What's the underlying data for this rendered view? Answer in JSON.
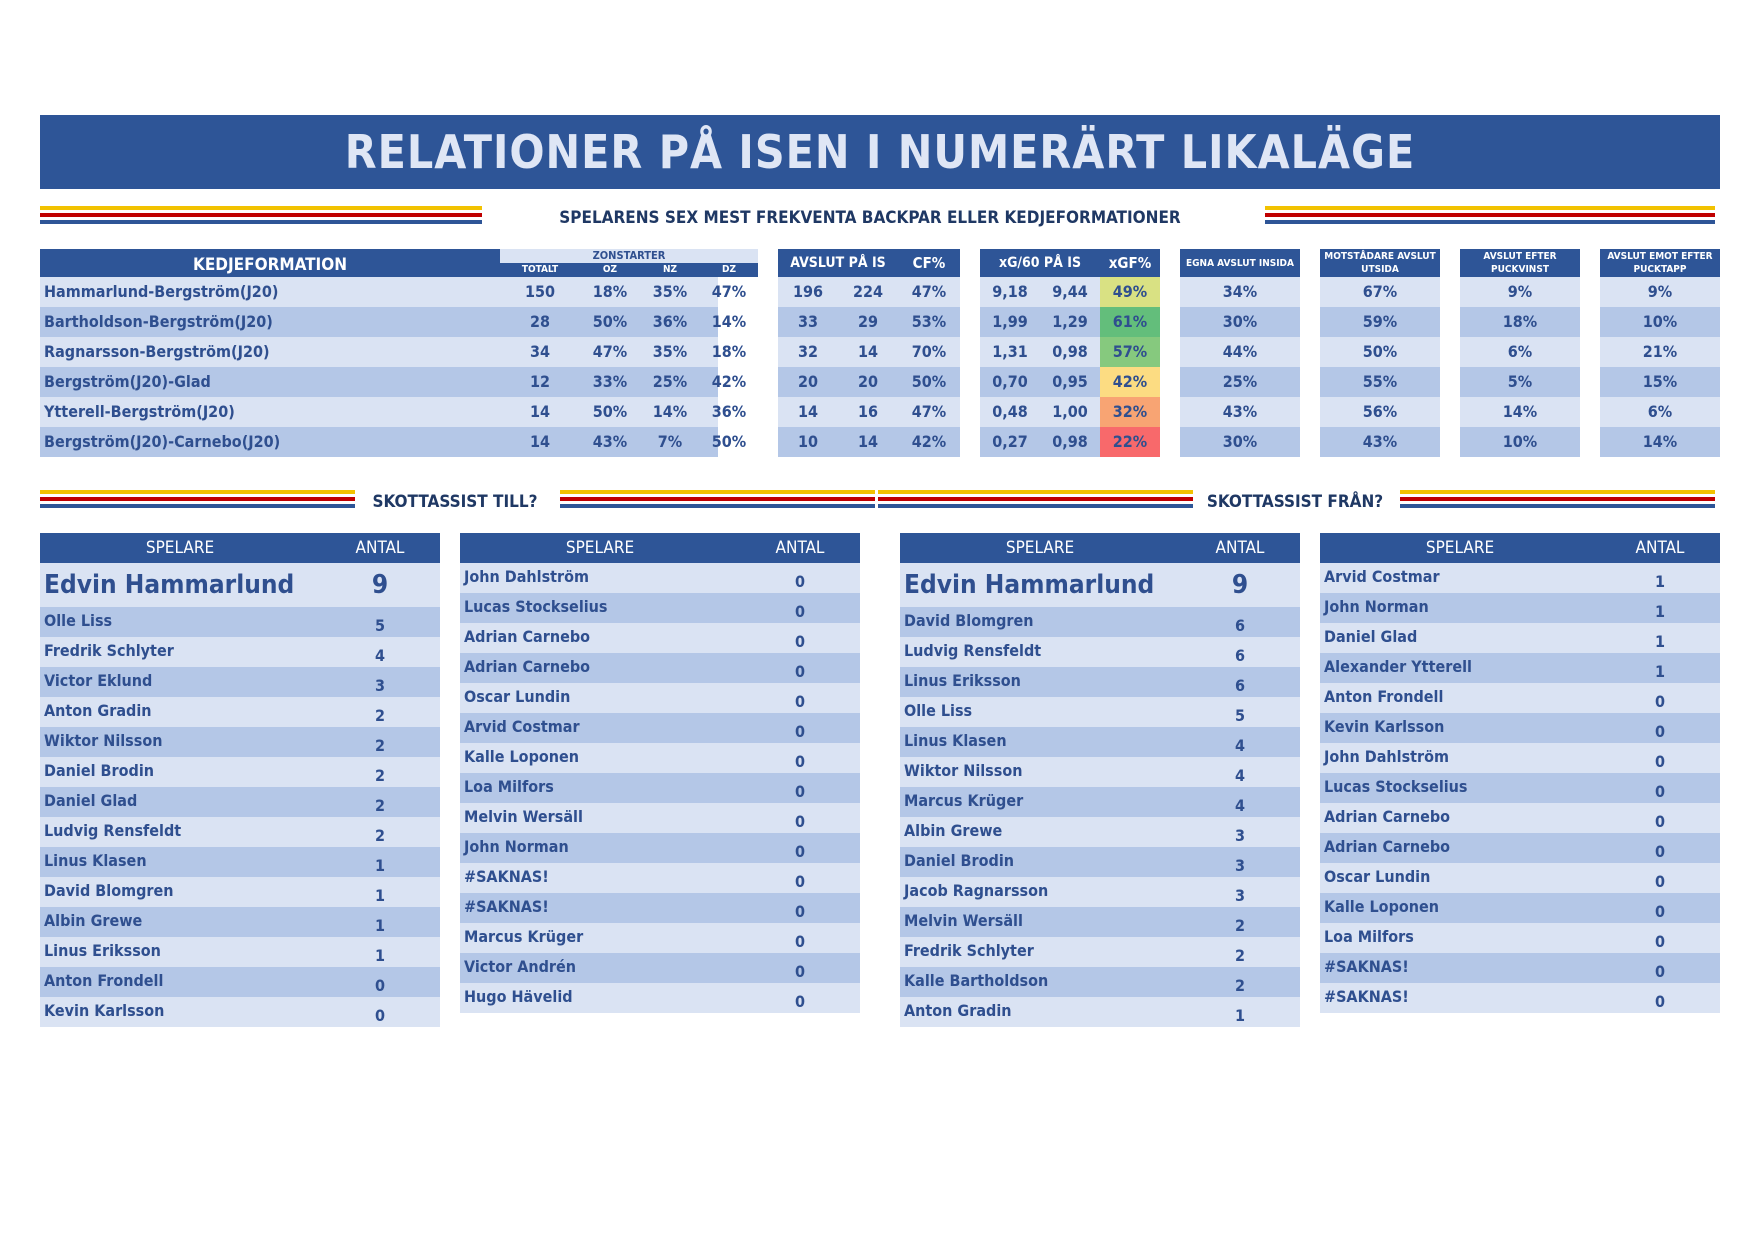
{
  "title": "RELATIONER PÅ ISEN I NUMERÄRT LIKALÄGE",
  "subtitle": "SPELARENS SEX MEST FREKVENTA BACKPAR ELLER KEDJEFORMATIONER",
  "main_table": {
    "col_formation": "KEDJEFORMATION",
    "col_zonstarter": "ZONSTARTER",
    "col_totalt": "TOTALT",
    "col_oz": "OZ",
    "col_nz": "NZ",
    "col_dz": "DZ",
    "col_avslut": "AVSLUT PÅ IS",
    "col_cf": "CF%",
    "col_xg60": "xG/60 PÅ IS",
    "col_xgf": "xGF%",
    "col_egna": "EGNA AVSLUT INSIDA",
    "col_motst": "MOTSTÅDARE AVSLUT UTSIDA",
    "col_puckvinst": "AVSLUT EFTER PUCKVINST",
    "col_pucktapp": "AVSLUT EMOT EFTER PUCKTAPP",
    "rows": [
      {
        "name": "Hammarlund-Bergström(J20)",
        "totalt": "150",
        "oz": "18%",
        "nz": "35%",
        "dz": "47%",
        "af": "196",
        "aa": "224",
        "cf": "47%",
        "xgf60": "9,18",
        "xga60": "9,44",
        "xgf": "49%",
        "xgf_color": "#d9e183",
        "egna": "34%",
        "motst": "67%",
        "puckvinst": "9%",
        "pucktapp": "9%"
      },
      {
        "name": "Bartholdson-Bergström(J20)",
        "totalt": "28",
        "oz": "50%",
        "nz": "36%",
        "dz": "14%",
        "af": "33",
        "aa": "29",
        "cf": "53%",
        "xgf60": "1,99",
        "xga60": "1,29",
        "xgf": "61%",
        "xgf_color": "#63be7b",
        "egna": "30%",
        "motst": "59%",
        "puckvinst": "18%",
        "pucktapp": "10%"
      },
      {
        "name": "Ragnarsson-Bergström(J20)",
        "totalt": "34",
        "oz": "47%",
        "nz": "35%",
        "dz": "18%",
        "af": "32",
        "aa": "14",
        "cf": "70%",
        "xgf60": "1,31",
        "xga60": "0,98",
        "xgf": "57%",
        "xgf_color": "#86c97e",
        "egna": "44%",
        "motst": "50%",
        "puckvinst": "6%",
        "pucktapp": "21%"
      },
      {
        "name": "Bergström(J20)-Glad",
        "totalt": "12",
        "oz": "33%",
        "nz": "25%",
        "dz": "42%",
        "af": "20",
        "aa": "20",
        "cf": "50%",
        "xgf60": "0,70",
        "xga60": "0,95",
        "xgf": "42%",
        "xgf_color": "#fcdc82",
        "egna": "25%",
        "motst": "55%",
        "puckvinst": "5%",
        "pucktapp": "15%"
      },
      {
        "name": "Ytterell-Bergström(J20)",
        "totalt": "14",
        "oz": "50%",
        "nz": "14%",
        "dz": "36%",
        "af": "14",
        "aa": "16",
        "cf": "47%",
        "xgf60": "0,48",
        "xga60": "1,00",
        "xgf": "32%",
        "xgf_color": "#f8a473",
        "egna": "43%",
        "motst": "56%",
        "puckvinst": "14%",
        "pucktapp": "6%"
      },
      {
        "name": "Bergström(J20)-Carnebo(J20)",
        "totalt": "14",
        "oz": "43%",
        "nz": "7%",
        "dz": "50%",
        "af": "10",
        "aa": "14",
        "cf": "42%",
        "xgf60": "0,27",
        "xga60": "0,98",
        "xgf": "22%",
        "xgf_color": "#f8696b",
        "egna": "30%",
        "motst": "43%",
        "puckvinst": "10%",
        "pucktapp": "14%"
      }
    ]
  },
  "section_till": "SKOTTASSIST TILL?",
  "section_fran": "SKOTTASSIST FRÅN?",
  "list_header_player": "SPELARE",
  "list_header_count": "ANTAL",
  "lists": [
    {
      "featured": {
        "name": "Edvin Hammarlund",
        "count": "9"
      },
      "rows": [
        [
          "Olle Liss",
          "5"
        ],
        [
          "Fredrik Schlyter",
          "4"
        ],
        [
          "Victor Eklund",
          "3"
        ],
        [
          "Anton Gradin",
          "2"
        ],
        [
          "Wiktor Nilsson",
          "2"
        ],
        [
          "Daniel Brodin",
          "2"
        ],
        [
          "Daniel Glad",
          "2"
        ],
        [
          "Ludvig Rensfeldt",
          "2"
        ],
        [
          "Linus Klasen",
          "1"
        ],
        [
          "David Blomgren",
          "1"
        ],
        [
          "Albin Grewe",
          "1"
        ],
        [
          "Linus Eriksson",
          "1"
        ],
        [
          "Anton Frondell",
          "0"
        ],
        [
          "Kevin Karlsson",
          "0"
        ]
      ]
    },
    {
      "featured": null,
      "rows": [
        [
          "John Dahlström",
          "0"
        ],
        [
          "Lucas Stockselius",
          "0"
        ],
        [
          "Adrian Carnebo",
          "0"
        ],
        [
          "Adrian Carnebo",
          "0"
        ],
        [
          "Oscar Lundin",
          "0"
        ],
        [
          "Arvid Costmar",
          "0"
        ],
        [
          "Kalle Loponen",
          "0"
        ],
        [
          "Loa Milfors",
          "0"
        ],
        [
          "Melvin Wersäll",
          "0"
        ],
        [
          "John Norman",
          "0"
        ],
        [
          "#SAKNAS!",
          "0"
        ],
        [
          "#SAKNAS!",
          "0"
        ],
        [
          "Marcus Krüger",
          "0"
        ],
        [
          "Victor Andrén",
          "0"
        ],
        [
          "Hugo Hävelid",
          "0"
        ]
      ]
    },
    {
      "featured": {
        "name": "Edvin Hammarlund",
        "count": "9"
      },
      "rows": [
        [
          "David Blomgren",
          "6"
        ],
        [
          "Ludvig Rensfeldt",
          "6"
        ],
        [
          "Linus Eriksson",
          "6"
        ],
        [
          "Olle Liss",
          "5"
        ],
        [
          "Linus Klasen",
          "4"
        ],
        [
          "Wiktor Nilsson",
          "4"
        ],
        [
          "Marcus Krüger",
          "4"
        ],
        [
          "Albin Grewe",
          "3"
        ],
        [
          "Daniel Brodin",
          "3"
        ],
        [
          "Jacob Ragnarsson",
          "3"
        ],
        [
          "Melvin Wersäll",
          "2"
        ],
        [
          "Fredrik Schlyter",
          "2"
        ],
        [
          "Kalle Bartholdson",
          "2"
        ],
        [
          "Anton Gradin",
          "1"
        ]
      ]
    },
    {
      "featured": null,
      "rows": [
        [
          "Arvid Costmar",
          "1"
        ],
        [
          "John Norman",
          "1"
        ],
        [
          "Daniel Glad",
          "1"
        ],
        [
          "Alexander Ytterell",
          "1"
        ],
        [
          "Anton Frondell",
          "0"
        ],
        [
          "Kevin Karlsson",
          "0"
        ],
        [
          "John Dahlström",
          "0"
        ],
        [
          "Lucas Stockselius",
          "0"
        ],
        [
          "Adrian Carnebo",
          "0"
        ],
        [
          "Adrian Carnebo",
          "0"
        ],
        [
          "Oscar Lundin",
          "0"
        ],
        [
          "Kalle Loponen",
          "0"
        ],
        [
          "Loa Milfors",
          "0"
        ],
        [
          "#SAKNAS!",
          "0"
        ],
        [
          "#SAKNAS!",
          "0"
        ]
      ]
    }
  ]
}
